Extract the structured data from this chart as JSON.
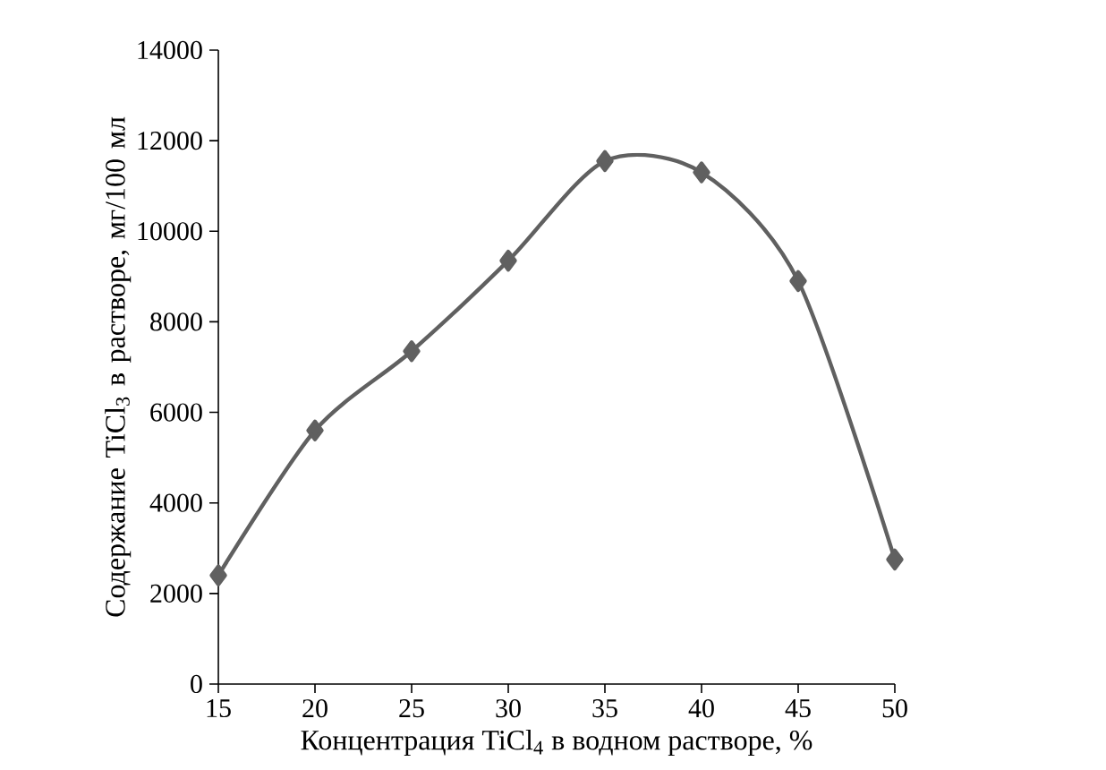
{
  "chart_data": {
    "type": "line",
    "xlabel": "Концентрация TiCl$_{4}$ в водном растворе, %",
    "ylabel": "Содержание TiCl$_{3}$ в растворе, мг/100 мл",
    "x": [
      15,
      20,
      25,
      30,
      35,
      40,
      45,
      50
    ],
    "series": [
      {
        "color": "#606060",
        "values": [
          2400,
          5600,
          7350,
          9350,
          11550,
          11300,
          8900,
          2750
        ]
      }
    ],
    "xlim": [
      15,
      50
    ],
    "xticks": [
      15,
      20,
      25,
      30,
      35,
      40,
      45,
      50
    ],
    "ylim": [
      0,
      14000
    ],
    "yticks": [
      0,
      2000,
      4000,
      6000,
      8000,
      10000,
      12000,
      14000
    ],
    "marker": "diamond",
    "line_style": "solid"
  }
}
